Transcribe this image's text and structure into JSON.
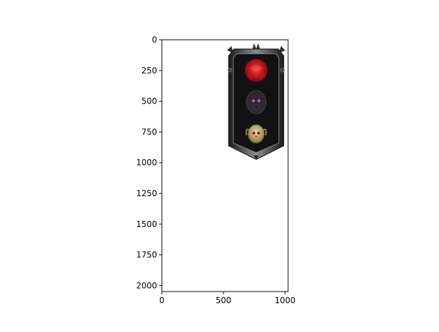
{
  "chart_data": {
    "type": "image",
    "title": "",
    "xlabel": "",
    "ylabel": "",
    "xlim": [
      0,
      1024
    ],
    "ylim": [
      2048,
      0
    ],
    "x_ticks": [
      0,
      500,
      1000
    ],
    "y_ticks": [
      0,
      250,
      500,
      750,
      1000,
      1250,
      1500,
      1750,
      2000
    ],
    "grid": false,
    "image": {
      "extent_x": [
        530,
        1000
      ],
      "extent_y": [
        30,
        985
      ],
      "description_icons": [
        "red-rose-emblem-icon",
        "dark-skull-icon",
        "horned-skull-icon"
      ],
      "colors": {
        "frame": "#3a3a3c",
        "frame_highlight": "#9a9a9e",
        "panel": "#121214",
        "rose": "#c4111a",
        "skull_dark": "#2b2a30",
        "eye_glow": "#e04bd0",
        "skull_bone": "#cdb98a"
      }
    }
  }
}
